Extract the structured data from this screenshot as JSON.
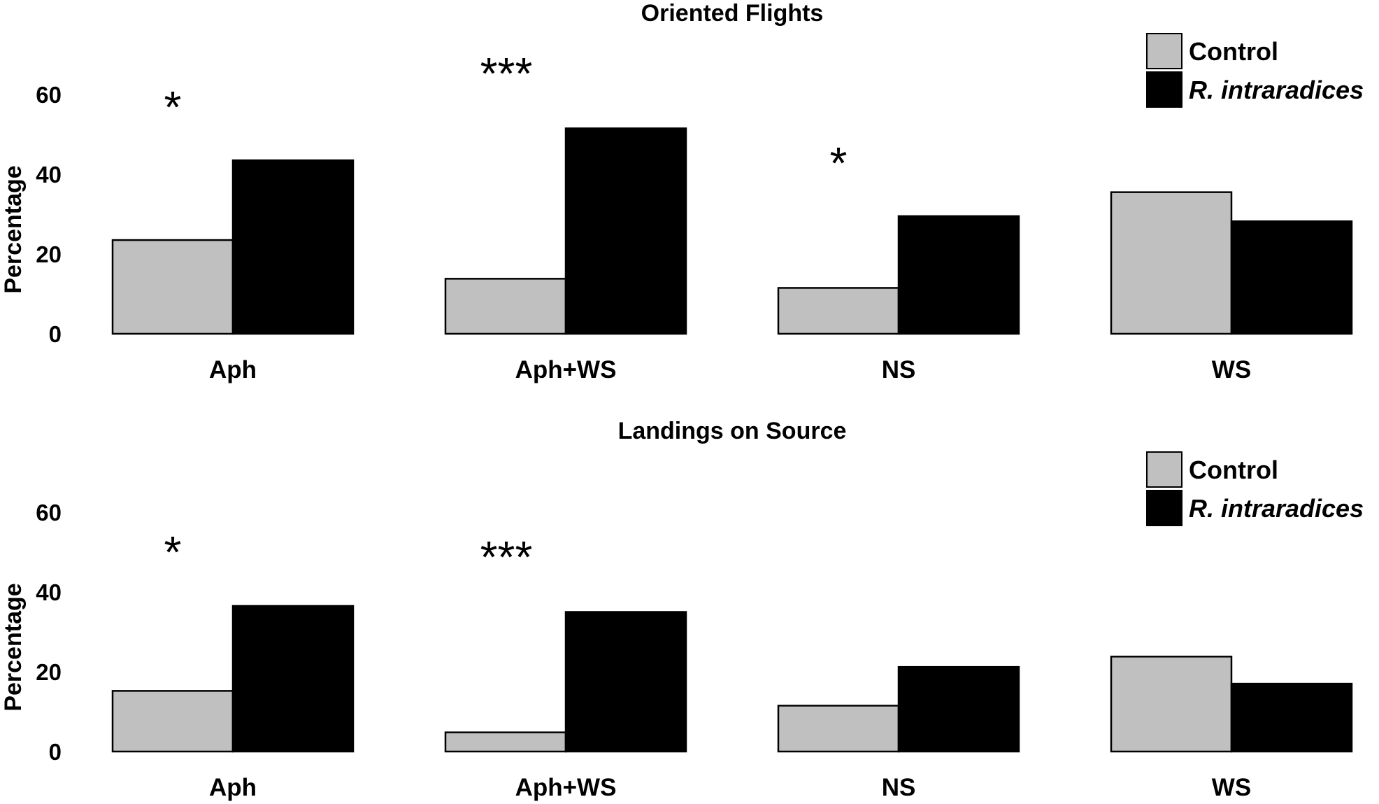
{
  "colors": {
    "control": "#c0c0c0",
    "treatment": "#000000",
    "bar_stroke": "#000000",
    "background": "#ffffff"
  },
  "chart_data": [
    {
      "type": "bar",
      "title": "Oriented Flights",
      "xlabel": "",
      "ylabel": "Percentage",
      "ylim": [
        0,
        60
      ],
      "yticks": [
        0,
        20,
        40,
        60
      ],
      "categories": [
        "Aph",
        "Aph+WS",
        "NS",
        "WS"
      ],
      "series": [
        {
          "name": "Control",
          "color": "#c0c0c0",
          "values": [
            23.5,
            13.8,
            11.5,
            35.5
          ]
        },
        {
          "name": "R. intraradices",
          "color": "#000000",
          "values": [
            43.5,
            51.5,
            29.5,
            28.2
          ]
        }
      ],
      "significance": [
        "*",
        "***",
        "*",
        ""
      ],
      "grid": false,
      "legend": "top-right"
    },
    {
      "type": "bar",
      "title": "Landings on Source",
      "xlabel": "",
      "ylabel": "Percentage",
      "ylim": [
        0,
        60
      ],
      "yticks": [
        0,
        20,
        40,
        60
      ],
      "categories": [
        "Aph",
        "Aph+WS",
        "NS",
        "WS"
      ],
      "series": [
        {
          "name": "Control",
          "color": "#c0c0c0",
          "values": [
            15.2,
            4.8,
            11.5,
            23.8
          ]
        },
        {
          "name": "R. intraradices",
          "color": "#000000",
          "values": [
            36.5,
            35.0,
            21.2,
            17.0
          ]
        }
      ],
      "significance": [
        "*",
        "***",
        "",
        ""
      ],
      "grid": false,
      "legend": "top-right"
    }
  ]
}
